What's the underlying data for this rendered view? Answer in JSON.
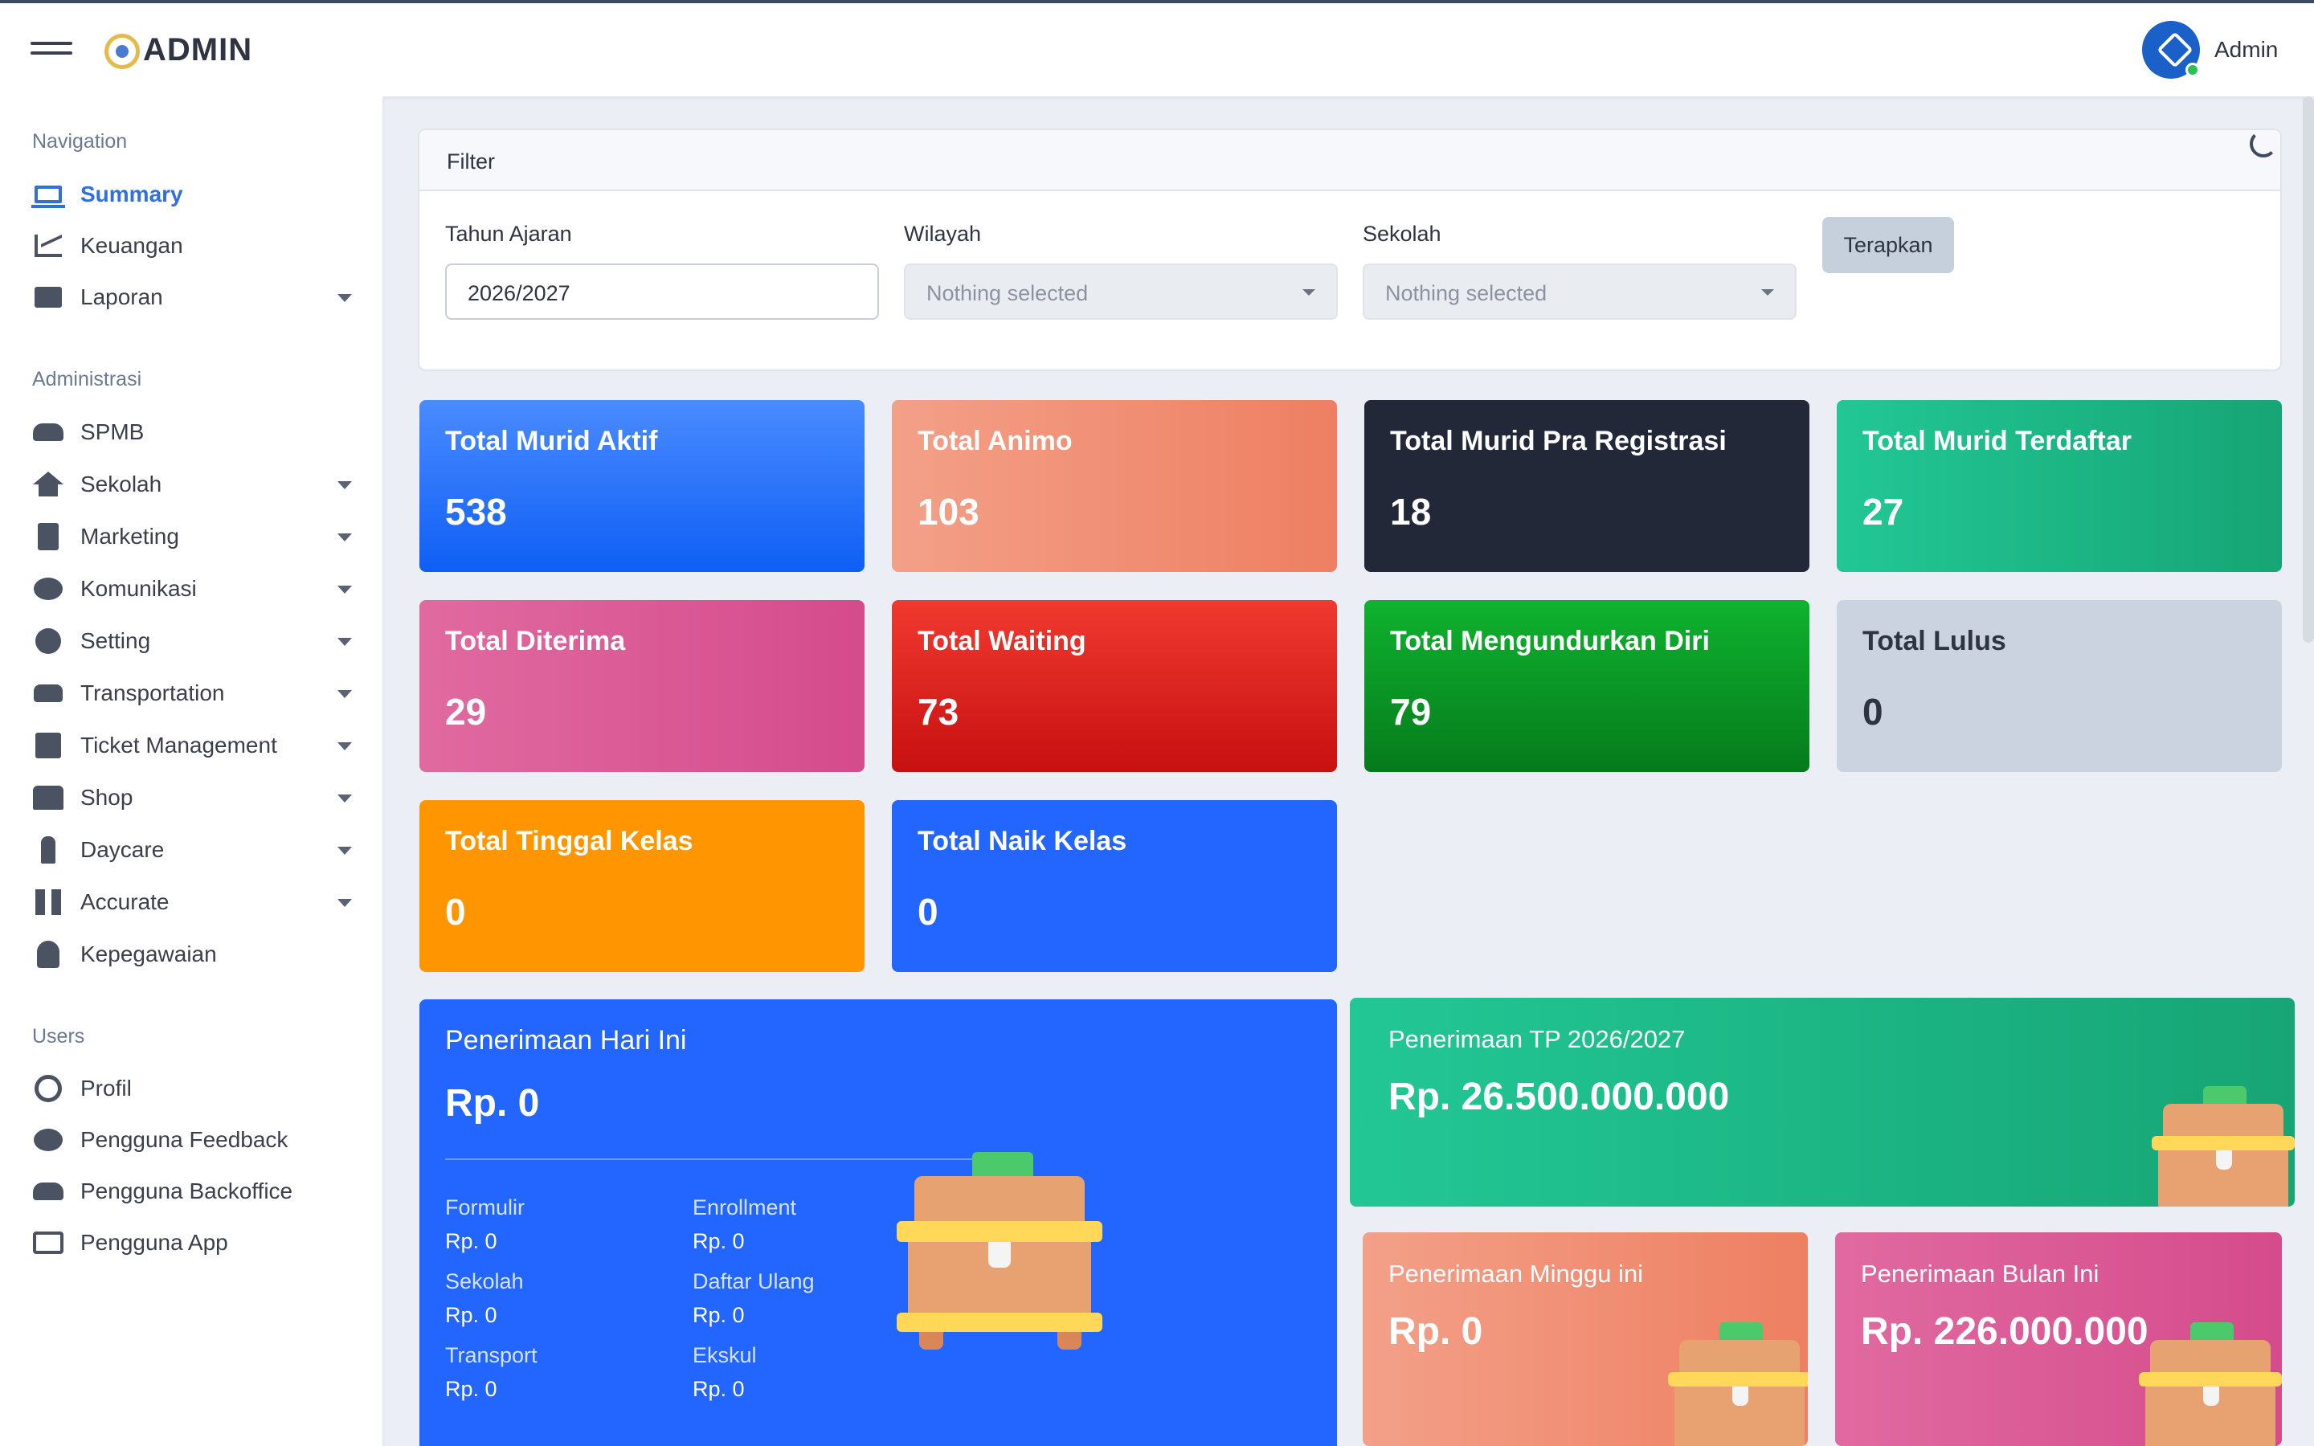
{
  "header": {
    "brand": "ADMIN",
    "user_name": "Admin"
  },
  "sidebar": {
    "sections": [
      {
        "title": "Navigation",
        "items": [
          {
            "label": "Summary",
            "icon": "laptop-icon",
            "active": true
          },
          {
            "label": "Keuangan",
            "icon": "chart-line-icon"
          },
          {
            "label": "Laporan",
            "icon": "envelope-icon",
            "has_submenu": true
          }
        ]
      },
      {
        "title": "Administrasi",
        "items": [
          {
            "label": "SPMB",
            "icon": "users-icon"
          },
          {
            "label": "Sekolah",
            "icon": "home-icon",
            "has_submenu": true
          },
          {
            "label": "Marketing",
            "icon": "file-icon",
            "has_submenu": true
          },
          {
            "label": "Komunikasi",
            "icon": "comment-icon",
            "has_submenu": true
          },
          {
            "label": "Setting",
            "icon": "gear-icon",
            "has_submenu": true
          },
          {
            "label": "Transportation",
            "icon": "car-icon",
            "has_submenu": true
          },
          {
            "label": "Ticket Management",
            "icon": "calendar-icon",
            "has_submenu": true
          },
          {
            "label": "Shop",
            "icon": "store-icon",
            "has_submenu": true
          },
          {
            "label": "Daycare",
            "icon": "child-icon",
            "has_submenu": true
          },
          {
            "label": "Accurate",
            "icon": "qrcode-icon",
            "has_submenu": true
          },
          {
            "label": "Kepegawaian",
            "icon": "user-tie-icon"
          }
        ]
      },
      {
        "title": "Users",
        "items": [
          {
            "label": "Profil",
            "icon": "user-circle-icon"
          },
          {
            "label": "Pengguna Feedback",
            "icon": "comment-icon"
          },
          {
            "label": "Pengguna Backoffice",
            "icon": "users-icon"
          },
          {
            "label": "Pengguna App",
            "icon": "id-card-icon"
          }
        ]
      }
    ]
  },
  "filter": {
    "title": "Filter",
    "tahun_ajaran": {
      "label": "Tahun Ajaran",
      "value": "2026/2027"
    },
    "wilayah": {
      "label": "Wilayah",
      "placeholder": "Nothing selected"
    },
    "sekolah": {
      "label": "Sekolah",
      "placeholder": "Nothing selected"
    },
    "apply_label": "Terapkan"
  },
  "stats": [
    {
      "title": "Total Murid Aktif",
      "value": "538",
      "color": "#1f6bff"
    },
    {
      "title": "Total Animo",
      "value": "103",
      "color": "#f08a6c"
    },
    {
      "title": "Total Murid Pra Registrasi",
      "value": "18",
      "color": "#222737"
    },
    {
      "title": "Total Murid Terdaftar",
      "value": "27",
      "color": "#1fb584"
    },
    {
      "title": "Total Diterima",
      "value": "29",
      "color": "#d8528f"
    },
    {
      "title": "Total Waiting",
      "value": "73",
      "color": "#e42323"
    },
    {
      "title": "Total Mengundurkan Diri",
      "value": "79",
      "color": "#0a9e2a"
    },
    {
      "title": "Total Lulus",
      "value": "0",
      "color": "#ccd3e0"
    },
    {
      "title": "Total Tinggal Kelas",
      "value": "0",
      "color": "#ff9500"
    },
    {
      "title": "Total Naik Kelas",
      "value": "0",
      "color": "#2266ff"
    }
  ],
  "penerimaan_hari_ini": {
    "title": "Penerimaan Hari Ini",
    "value": "Rp. 0",
    "details": [
      {
        "label": "Formulir",
        "value": "Rp. 0"
      },
      {
        "label": "Enrollment",
        "value": "Rp. 0"
      },
      {
        "label": "Sekolah",
        "value": "Rp. 0"
      },
      {
        "label": "Daftar Ulang",
        "value": "Rp. 0"
      },
      {
        "label": "Transport",
        "value": "Rp. 0"
      },
      {
        "label": "Ekskul",
        "value": "Rp. 0"
      }
    ]
  },
  "penerimaan_tp": {
    "title": "Penerimaan TP 2026/2027",
    "value": "Rp. 26.500.000.000"
  },
  "penerimaan_minggu": {
    "title": "Penerimaan Minggu ini",
    "value": "Rp. 0"
  },
  "penerimaan_bulan": {
    "title": "Penerimaan Bulan Ini",
    "value": "Rp. 226.000.000"
  }
}
